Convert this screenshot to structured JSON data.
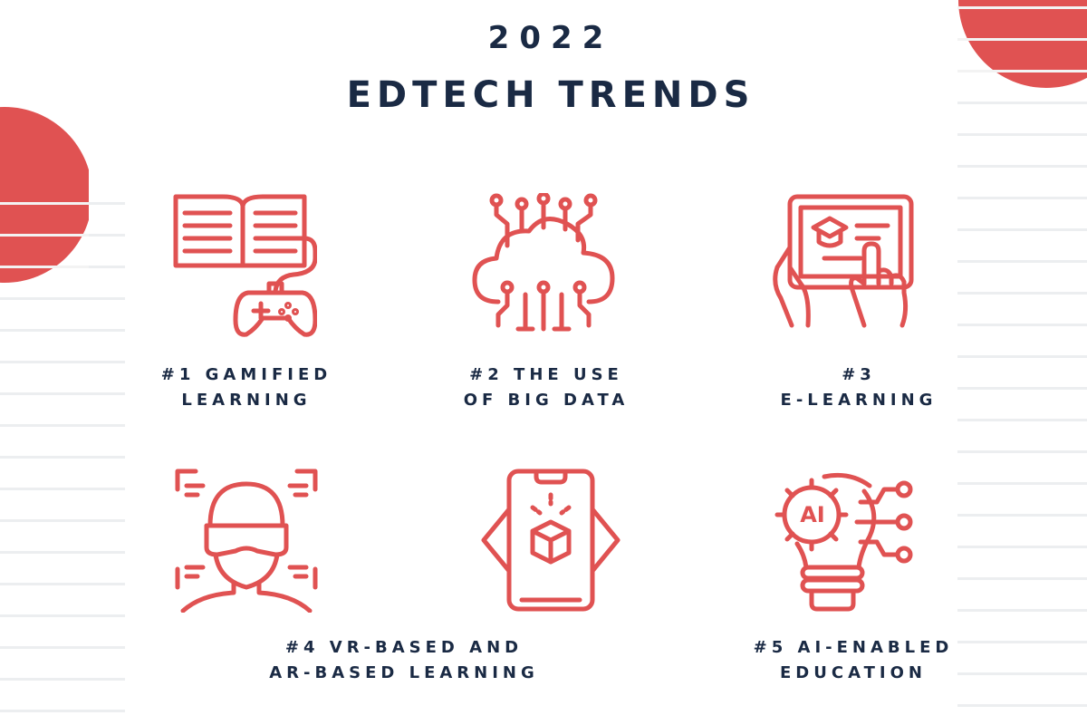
{
  "header": {
    "year": "2022",
    "title": "EDTECH TRENDS"
  },
  "colors": {
    "accent": "#e05252",
    "text": "#1a2a44",
    "stripes": "#eceef0"
  },
  "trends": [
    {
      "icon": "book-gamepad-icon",
      "line1": "#1 GAMIFIED",
      "line2": "LEARNING"
    },
    {
      "icon": "cloud-data-icon",
      "line1": "#2 THE USE",
      "line2": "OF BIG DATA"
    },
    {
      "icon": "tablet-elearning-icon",
      "line1": "#3",
      "line2": "E-LEARNING"
    },
    {
      "icon": "vr-headset-icon",
      "line1": "#4 VR-BASED AND",
      "line2": "AR-BASED LEARNING"
    },
    {
      "icon": "ar-phone-icon"
    },
    {
      "icon": "ai-lightbulb-icon",
      "icon_text": "AI",
      "line1": "#5 AI-ENABLED",
      "line2": "EDUCATION"
    }
  ]
}
